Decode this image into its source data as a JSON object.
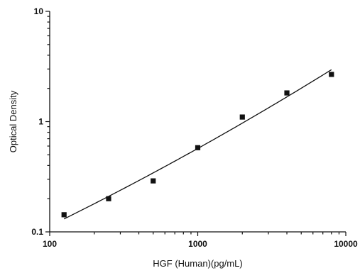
{
  "chart_data": {
    "type": "scatter",
    "xlabel": "HGF (Human)(pg/mL)",
    "ylabel": "Optical Density",
    "xscale": "log",
    "yscale": "log",
    "xlim": [
      100,
      10000
    ],
    "ylim": [
      0.1,
      10
    ],
    "x_ticks": [
      "100",
      "1000",
      "10000"
    ],
    "y_ticks": [
      "0.1",
      "1",
      "10"
    ],
    "grid": false,
    "series": [
      {
        "points": [
          {
            "x": 125,
            "y": 0.143
          },
          {
            "x": 250,
            "y": 0.2
          },
          {
            "x": 500,
            "y": 0.29
          },
          {
            "x": 1000,
            "y": 0.58
          },
          {
            "x": 2000,
            "y": 1.1
          },
          {
            "x": 4000,
            "y": 1.82
          },
          {
            "x": 8000,
            "y": 2.68
          }
        ],
        "fit_curve": true
      }
    ]
  }
}
